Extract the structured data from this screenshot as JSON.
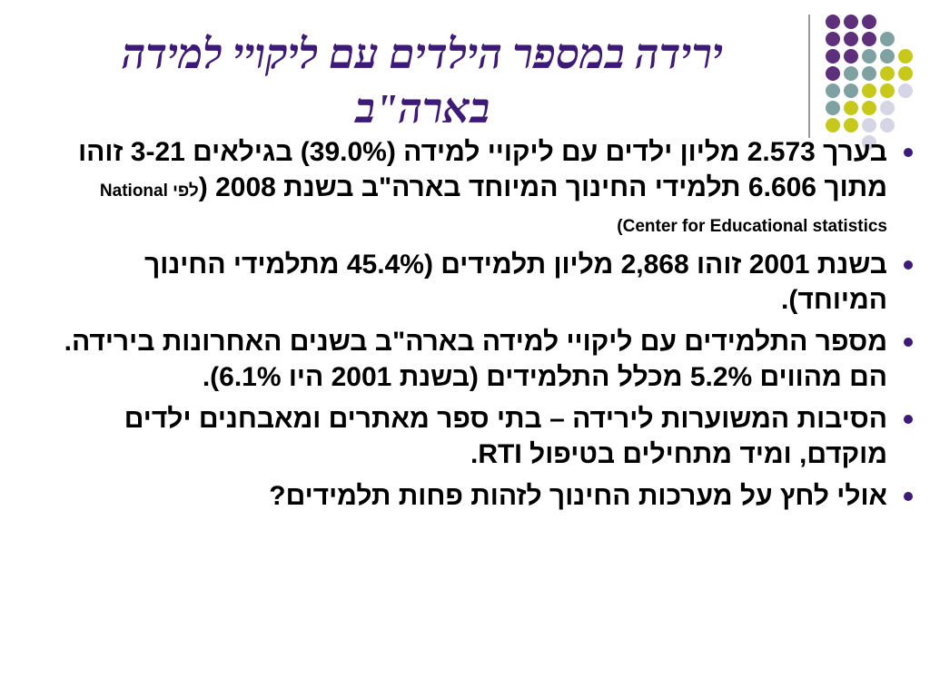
{
  "slide": {
    "title": "ירידה במספר הילדים עם ליקויי למידה בארה\"ב",
    "colors": {
      "title": "#3d1a78",
      "bullet": "#3d1a78",
      "dot_purple": "#5e2f7a",
      "dot_teal": "#7fa1a1",
      "dot_yellow": "#c7c91a",
      "dot_lavender": "#d6d5e6",
      "divider": "#9a9a9a"
    },
    "bullets": [
      {
        "text": "בערך 2.573 מליון ילדים עם ליקויי למידה (39.0%) בגילאים 3-21 זוהו מתוך  6.606 תלמידי החינוך המיוחד בארה\"ב בשנת 2008 (",
        "note": "לפי  National Center for Educational statistics)"
      },
      {
        "text": "בשנת 2001 זוהו  2,868 מליון תלמידים (45.4% מתלמידי החינוך המיוחד)."
      },
      {
        "text": "מספר התלמידים עם ליקויי למידה בארה\"ב בשנים האחרונות בירידה. הם מהווים 5.2% מכלל התלמידים (בשנת 2001 היו 6.1%)."
      },
      {
        "text": "הסיבות המשוערות לירידה – בתי ספר מאתרים ומאבחנים ילדים מוקדם, ומיד מתחילים בטיפול RTI."
      },
      {
        "text": "אולי לחץ על מערכות החינוך לזהות פחות תלמידים?"
      }
    ]
  }
}
